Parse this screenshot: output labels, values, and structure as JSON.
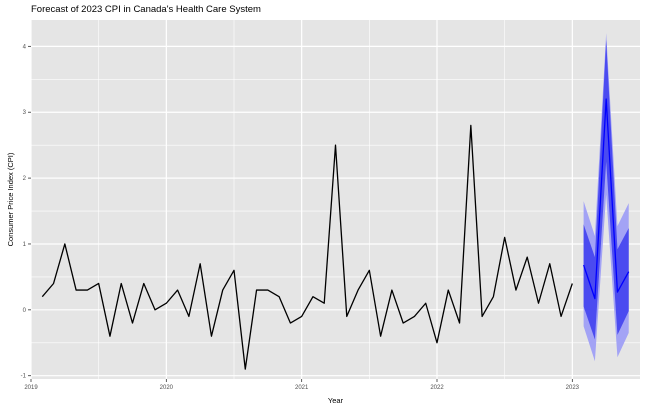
{
  "chart_data": {
    "type": "line",
    "title": "Forecast of 2023 CPI in Canada's Health Care System",
    "xlabel": "Year",
    "ylabel": "Consumer Price Index (CPI)",
    "xlim": [
      2019.0,
      2023.5
    ],
    "ylim": [
      -1.05,
      4.4
    ],
    "x_ticks": [
      2019,
      2020,
      2021,
      2022,
      2023
    ],
    "x_tick_labels": [
      "2019",
      "2020",
      "2021",
      "2022",
      "2023"
    ],
    "y_ticks": [
      -1,
      0,
      1,
      2,
      3,
      4
    ],
    "y_tick_labels": [
      "-1",
      "0",
      "1",
      "2",
      "3",
      "4"
    ],
    "grid": true,
    "background": "#e5e5e5",
    "history": {
      "color": "#000000",
      "start": "2019-02",
      "values": [
        0.2,
        0.4,
        1.0,
        0.3,
        0.3,
        0.4,
        -0.4,
        0.4,
        -0.2,
        0.4,
        0.0,
        0.1,
        0.3,
        -0.1,
        0.7,
        -0.4,
        0.3,
        0.6,
        -0.9,
        0.3,
        0.3,
        0.2,
        -0.2,
        -0.1,
        0.2,
        0.1,
        2.5,
        -0.1,
        0.3,
        0.6,
        -0.4,
        0.3,
        -0.2,
        -0.1,
        0.1,
        -0.5,
        0.3,
        -0.2,
        2.8,
        -0.1,
        0.2,
        1.1,
        0.3,
        0.8,
        0.1,
        0.7,
        -0.1,
        0.4
      ]
    },
    "forecast": {
      "line_color": "#0000ff",
      "band_80_color": "#4b4bf0",
      "band_95_color": "#a3a3f5",
      "start": "2023-02",
      "mean": [
        0.68,
        0.17,
        3.2,
        0.27,
        0.58
      ],
      "lo80": [
        0.05,
        -0.45,
        2.25,
        -0.38,
        -0.02
      ],
      "hi80": [
        1.3,
        0.8,
        4.1,
        0.92,
        1.24
      ],
      "lo95": [
        -0.25,
        -0.78,
        1.75,
        -0.72,
        -0.35
      ],
      "hi95": [
        1.65,
        1.12,
        4.2,
        1.27,
        1.62
      ]
    }
  }
}
